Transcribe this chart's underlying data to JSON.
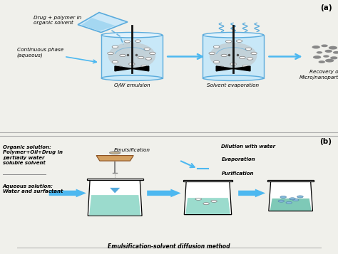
{
  "bg_color": "#f0f0eb",
  "panel_a_label": "(a)",
  "panel_b_label": "(b)",
  "panel_a_texts": {
    "drug_label": "Drug + polymer in\norganic solvent",
    "continuous_label": "Continuous phase\n(aqueous)",
    "ow_label": "O/W emulsion",
    "solvent_evap_label": "Solvent evaporation",
    "recovery_label": "Recovery of\nMicro/nanoparticles"
  },
  "panel_b_texts": {
    "organic_label": "Organic solution:\nPolymer+Oil+Drug in\npartially water\nsoluble solvent",
    "aqueous_label": "Aqueous solution:\nWater and surfactant",
    "emulsification_label": "Emulsification",
    "dilution_label": "Dilution with water",
    "evaporation_label": "Evaporation",
    "purification_label": "Purification",
    "footer_label": "Emulsification-solvent diffusion method"
  },
  "arrow_color": "#4db8f0",
  "cylinder_border": "#5aabdc",
  "cylinder_fill": "#c8e8f8",
  "particle_color": "#888888",
  "beaker_green": "#90d8c8",
  "beaker_teal": "#70c4b0",
  "bubble_blue": "#88bbdd"
}
